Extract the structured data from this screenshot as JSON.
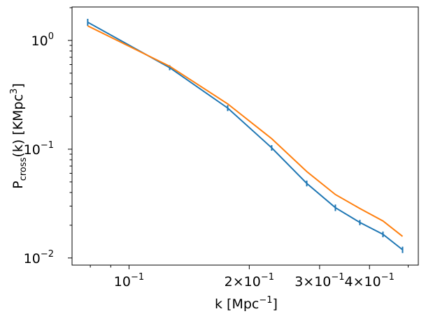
{
  "chart_data": {
    "type": "line",
    "xlabel": {
      "text": "k [Mpc",
      "sup": "−1",
      "end": "]"
    },
    "ylabel": {
      "base": "P",
      "sub": "cross",
      "text": "(k) [KMpc",
      "sup": "3",
      "end": "]"
    },
    "x": [
      0.0788,
      0.1264,
      0.1766,
      0.2276,
      0.2786,
      0.3286,
      0.3784,
      0.4323,
      0.484
    ],
    "series": [
      {
        "color": "#1f77b4",
        "values": [
          1.47,
          0.562,
          0.239,
          0.103,
          0.0485,
          0.029,
          0.0212,
          0.0165,
          0.0119
        ],
        "errors": [
          0.11,
          0.03,
          0.015,
          0.006,
          0.003,
          0.002,
          0.0012,
          0.001,
          0.0008
        ]
      },
      {
        "color": "#ff7f0e",
        "values": [
          1.36,
          0.579,
          0.261,
          0.125,
          0.0623,
          0.0383,
          0.0285,
          0.0219,
          0.0158
        ]
      }
    ],
    "log_x": true,
    "log_y": true,
    "xlim": [
      0.072,
      0.53
    ],
    "ylim": [
      0.0086,
      2.03
    ],
    "xticks": [
      {
        "value": 0.1,
        "label": "10",
        "exponent": "−1"
      },
      {
        "value": 0.2,
        "label": "2×10",
        "exponent": "−1"
      },
      {
        "value": 0.3,
        "label": "3×10",
        "exponent": "−1"
      },
      {
        "value": 0.4,
        "label": "4×10",
        "exponent": "−1"
      }
    ],
    "yticks": [
      {
        "value": 0.01,
        "label": "10",
        "exponent": "−2"
      },
      {
        "value": 0.1,
        "label": "10",
        "exponent": "−1"
      },
      {
        "value": 1,
        "label": "10",
        "exponent": "0"
      }
    ],
    "xminorticks": [
      0.08,
      0.09,
      0.5
    ],
    "yminorticks": [
      0.02,
      0.03,
      0.04,
      0.05,
      0.06,
      0.07,
      0.08,
      0.09,
      0.2,
      0.3,
      0.4,
      0.5,
      0.6,
      0.7,
      0.8,
      0.9,
      2
    ]
  }
}
